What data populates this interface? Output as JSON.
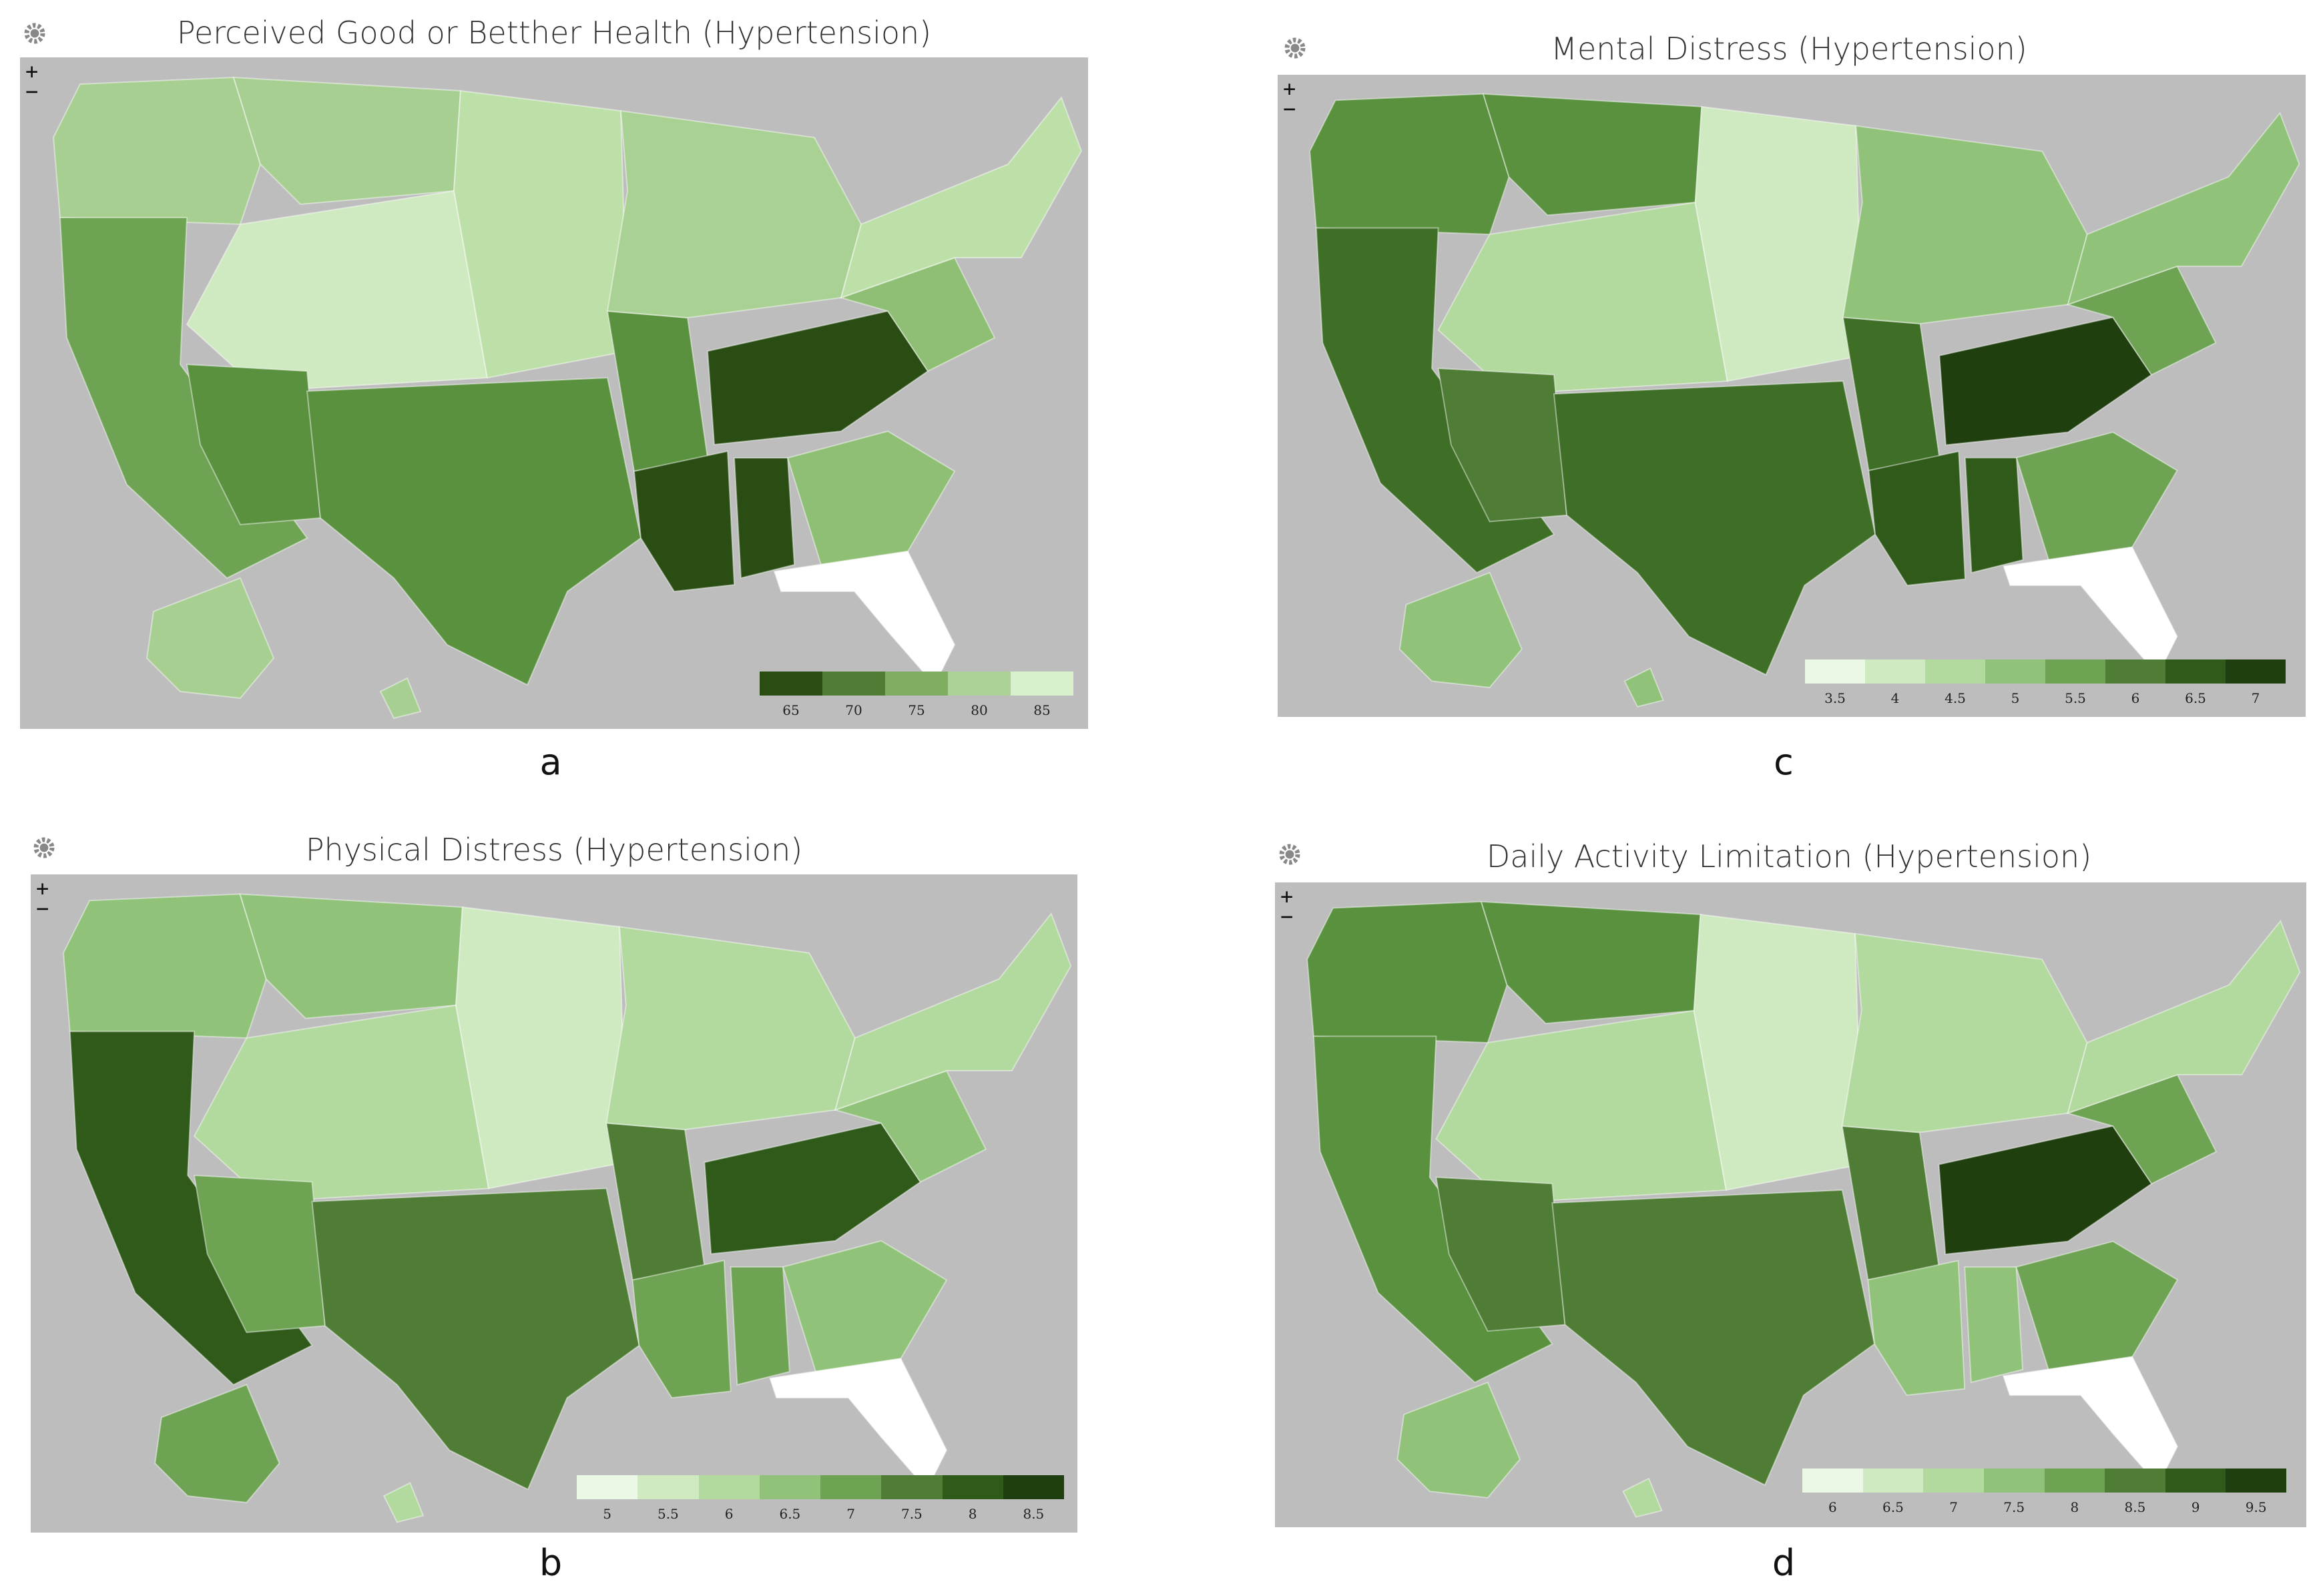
{
  "panels": [
    {
      "id": "a",
      "title": "Perceived Good or Betther Health (Hypertension)",
      "caption": "a",
      "zoom_in": "+",
      "zoom_out": "−",
      "gear_icon": "gear-icon",
      "legend": {
        "colors": [
          "#2a4d14",
          "#4f7d35",
          "#7fad62",
          "#acd297",
          "#d8f0cc"
        ],
        "labels": [
          "65",
          "70",
          "75",
          "80",
          "85"
        ]
      },
      "regions": {
        "northwest": "#a7cf91",
        "west": "#6da352",
        "southwest": "#5a913f",
        "mountain": "#cfeac0",
        "plains": "#bde0a9",
        "south_central": "#5a913f",
        "deep_south": "#2a4d14",
        "midwest": "#a9d193",
        "appalachia": "#2a4d14",
        "southeast": "#8fbf74",
        "northeast": "#bde0a9",
        "florida": "#ffffff",
        "alaska": "#a7cf91",
        "hawaii": "#a7cf91"
      }
    },
    {
      "id": "c",
      "title": "Mental Distress (Hypertension)",
      "caption": "c",
      "zoom_in": "+",
      "zoom_out": "−",
      "gear_icon": "gear-icon",
      "legend": {
        "colors": [
          "#ecf8e6",
          "#cfeac0",
          "#b2d99e",
          "#91c27a",
          "#6da352",
          "#4f7d35",
          "#2f5a1a",
          "#1f3f0e"
        ],
        "labels": [
          "3.5",
          "4",
          "4.5",
          "5",
          "5.5",
          "6",
          "6.5",
          "7"
        ]
      },
      "regions": {
        "northwest": "#5a913f",
        "west": "#3f6f27",
        "southwest": "#4f7d35",
        "mountain": "#b2d99e",
        "plains": "#cfeac0",
        "south_central": "#3f6f27",
        "deep_south": "#2f5a1a",
        "midwest": "#91c27a",
        "appalachia": "#1f3f0e",
        "southeast": "#6da352",
        "northeast": "#91c27a",
        "florida": "#ffffff",
        "alaska": "#91c27a",
        "hawaii": "#91c27a"
      }
    },
    {
      "id": "b",
      "title": "Physical Distress (Hypertension)",
      "caption": "b",
      "zoom_in": "+",
      "zoom_out": "−",
      "gear_icon": "gear-icon",
      "legend": {
        "colors": [
          "#ecf8e6",
          "#cfeac0",
          "#b2d99e",
          "#91c27a",
          "#6da352",
          "#4f7d35",
          "#2f5a1a",
          "#1f3f0e"
        ],
        "labels": [
          "5",
          "5.5",
          "6",
          "6.5",
          "7",
          "7.5",
          "8",
          "8.5"
        ]
      },
      "regions": {
        "northwest": "#91c27a",
        "west": "#2f5a1a",
        "southwest": "#6da352",
        "mountain": "#b2d99e",
        "plains": "#cfeac0",
        "south_central": "#4f7d35",
        "deep_south": "#6da352",
        "midwest": "#b2d99e",
        "appalachia": "#2f5a1a",
        "southeast": "#91c27a",
        "northeast": "#b2d99e",
        "florida": "#ffffff",
        "alaska": "#6da352",
        "hawaii": "#b2d99e"
      }
    },
    {
      "id": "d",
      "title": "Daily Activity Limitation (Hypertension)",
      "caption": "d",
      "zoom_in": "+",
      "zoom_out": "−",
      "gear_icon": "gear-icon",
      "legend": {
        "colors": [
          "#ecf8e6",
          "#cfeac0",
          "#b2d99e",
          "#91c27a",
          "#6da352",
          "#4f7d35",
          "#2f5a1a",
          "#1f3f0e"
        ],
        "labels": [
          "6",
          "6.5",
          "7",
          "7.5",
          "8",
          "8.5",
          "9",
          "9.5"
        ]
      },
      "regions": {
        "northwest": "#5a913f",
        "west": "#5a913f",
        "southwest": "#4f7d35",
        "mountain": "#b2d99e",
        "plains": "#cfeac0",
        "south_central": "#4f7d35",
        "deep_south": "#91c27a",
        "midwest": "#b2d99e",
        "appalachia": "#1f3f0e",
        "southeast": "#6da352",
        "northeast": "#b2d99e",
        "florida": "#ffffff",
        "alaska": "#91c27a",
        "hawaii": "#b2d99e"
      }
    }
  ]
}
